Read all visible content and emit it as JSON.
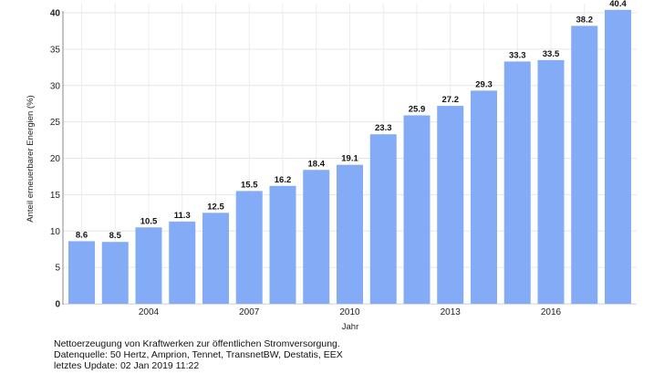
{
  "chart_data": {
    "type": "bar",
    "categories": [
      2002,
      2003,
      2004,
      2005,
      2006,
      2007,
      2008,
      2009,
      2010,
      2011,
      2012,
      2013,
      2014,
      2015,
      2016,
      2017,
      2018
    ],
    "values": [
      8.6,
      8.5,
      10.5,
      11.3,
      12.5,
      15.5,
      16.2,
      18.4,
      19.1,
      23.3,
      25.9,
      27.2,
      29.3,
      33.3,
      33.5,
      38.2,
      40.4
    ],
    "data_labels": [
      "8.6",
      "8.5",
      "10.5",
      "11.3",
      "12.5",
      "15.5",
      "16.2",
      "18.4",
      "19.1",
      "23.3",
      "25.9",
      "27.2",
      "29.3",
      "33.3",
      "33.5",
      "38.2",
      "40.4"
    ],
    "xlabel": "Jahr",
    "ylabel": "Anteil erneuerbarer Energien (%)",
    "ylim": [
      0,
      40
    ],
    "yticks": [
      "0",
      "5",
      "10",
      "15",
      "20",
      "25",
      "30",
      "35",
      "40"
    ],
    "xticks": [
      "2004",
      "2007",
      "2010",
      "2013",
      "2016"
    ],
    "grid": true,
    "bar_color": "#84acf6"
  },
  "footer": {
    "line1": "Nettoerzeugung von Kraftwerken zur öffentlichen Stromversorgung.",
    "line2": "Datenquelle: 50 Hertz, Amprion, Tennet, TransnetBW, Destatis, EEX",
    "line3": "letztes Update: 02 Jan 2019 11:22"
  }
}
